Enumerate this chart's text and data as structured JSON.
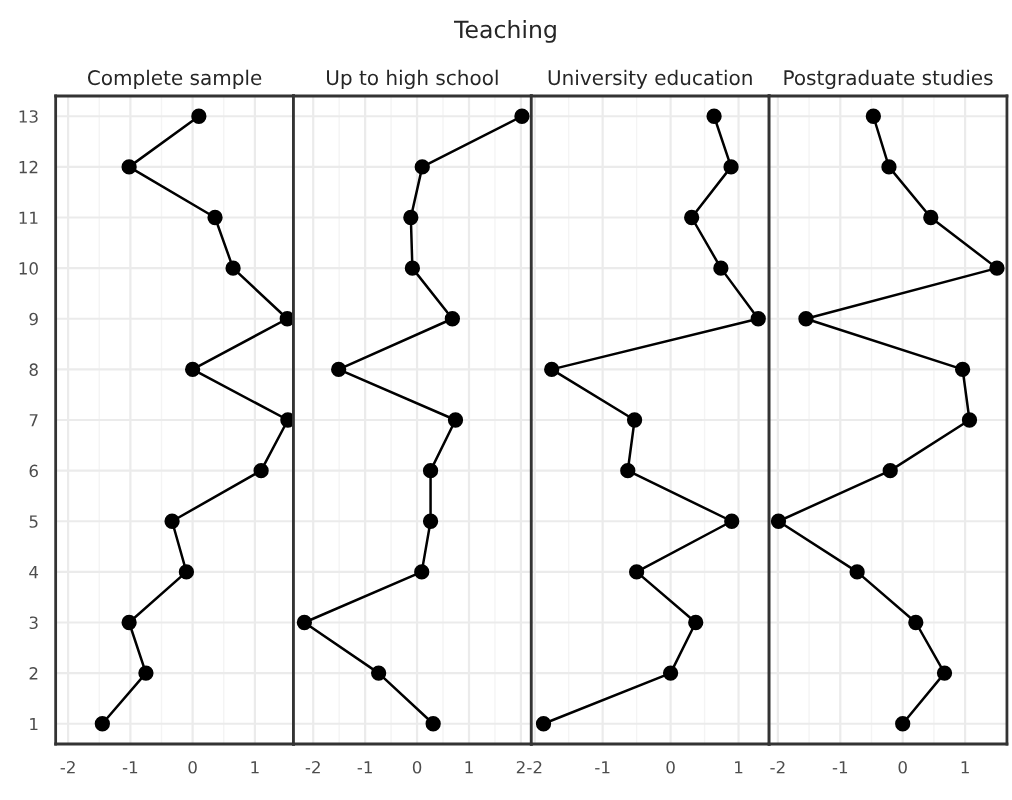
{
  "chart_data": [
    {
      "type": "line",
      "orientation": "horizontal",
      "title": "Complete sample",
      "annotations": [
        "Teaching"
      ],
      "categories": [
        "13",
        "12",
        "11",
        "10",
        "9",
        "8",
        "7",
        "6",
        "5",
        "4",
        "3",
        "2",
        "1"
      ],
      "series": [
        {
          "color": "#000000",
          "values": [
            0.1,
            -1.02,
            0.36,
            0.65,
            1.52,
            0,
            1.53,
            1.1,
            -0.33,
            -0.1,
            -1.02,
            -0.75,
            -1.45
          ]
        }
      ],
      "xlim": [
        -2.2,
        1.62
      ],
      "xticks": [
        -2,
        -1,
        0,
        1
      ],
      "grid": true,
      "marker": "circle",
      "line_style": "solid"
    },
    {
      "type": "line",
      "orientation": "horizontal",
      "title": "Up to high school",
      "categories": [
        "13",
        "12",
        "11",
        "10",
        "9",
        "8",
        "7",
        "6",
        "5",
        "4",
        "3",
        "2",
        "1"
      ],
      "series": [
        {
          "color": "#000000",
          "values": [
            2.02,
            0.1,
            -0.12,
            -0.09,
            0.68,
            -1.51,
            0.74,
            0.26,
            0.26,
            0.09,
            -2.17,
            -0.74,
            0.31
          ]
        }
      ],
      "xlim": [
        -2.38,
        2.2
      ],
      "xticks": [
        -2,
        -1,
        0,
        1,
        2
      ],
      "grid": true,
      "marker": "circle",
      "line_style": "solid",
      "tick_labels": "x"
    },
    {
      "type": "line",
      "orientation": "horizontal",
      "title": "University education",
      "categories": [
        "13",
        "12",
        "11",
        "10",
        "9",
        "8",
        "7",
        "6",
        "5",
        "4",
        "3",
        "2",
        "1"
      ],
      "series": [
        {
          "color": "#000000",
          "values": [
            0.64,
            0.89,
            0.31,
            0.74,
            1.29,
            -1.75,
            -0.53,
            -0.63,
            0.9,
            -0.5,
            0.37,
            0,
            -1.87
          ]
        }
      ],
      "xlim": [
        -2.05,
        1.45
      ],
      "xticks": [
        -2,
        -1,
        0,
        1
      ],
      "grid": true,
      "marker": "circle",
      "line_style": "solid",
      "tick_labels": "x"
    },
    {
      "type": "line",
      "orientation": "horizontal",
      "title": "Postgraduate studies",
      "categories": [
        "13",
        "12",
        "11",
        "10",
        "9",
        "8",
        "7",
        "6",
        "5",
        "4",
        "3",
        "2",
        "1"
      ],
      "series": [
        {
          "color": "#000000",
          "values": [
            -0.47,
            -0.22,
            0.45,
            1.51,
            -1.55,
            0.96,
            1.07,
            -0.2,
            -1.99,
            -0.73,
            0.21,
            0.67,
            0
          ]
        }
      ],
      "xlim": [
        -2.14,
        1.67
      ],
      "xticks": [
        -2,
        -1,
        0,
        1
      ],
      "grid": true,
      "marker": "circle",
      "line_style": "solid",
      "tick_labels": "x"
    }
  ]
}
